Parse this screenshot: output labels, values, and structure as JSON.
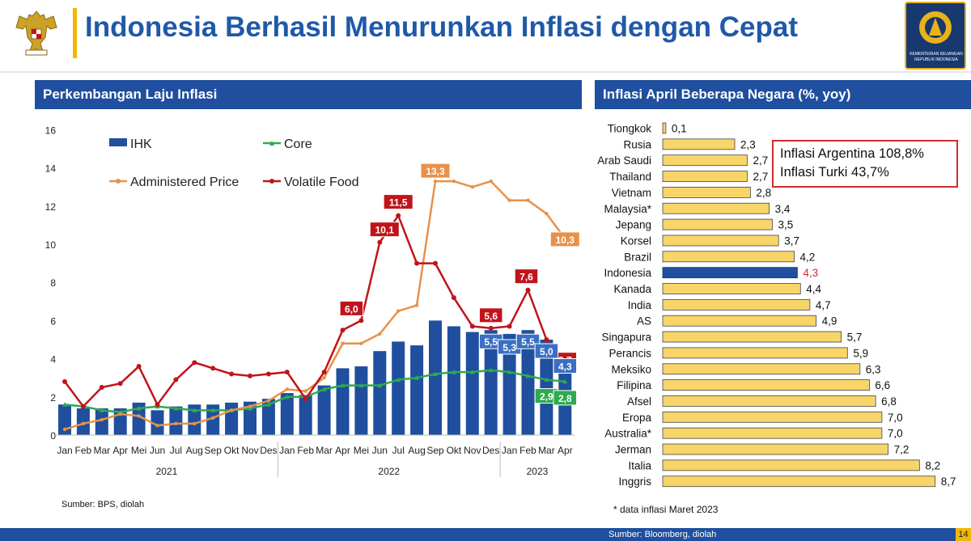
{
  "header": {
    "title": "Indonesia Berhasil Menurunkan Inflasi dengan Cepat",
    "logo_text": "KEMENTERIAN KEUANGAN REPUBLIK INDONESIA",
    "brand_blue": "#1f4f9e",
    "accent_yellow": "#f2b705"
  },
  "left_panel": {
    "title": "Perkembangan Laju Inflasi",
    "source": "Sumber: BPS, diolah"
  },
  "right_panel": {
    "title": "Inflasi April Beberapa Negara (%, yoy)",
    "note": "* data inflasi Maret 2023",
    "callout_lines": [
      "Inflasi Argentina 108,8%",
      "Inflasi Turki 43,7%"
    ]
  },
  "footer": {
    "source": "Sumber: Bloomberg, diolah",
    "page": "14"
  },
  "chart_data": [
    {
      "type": "bar",
      "ylim": [
        0,
        16
      ],
      "yticks": [
        "0",
        "2",
        "4",
        "6",
        "8",
        "10",
        "12",
        "14",
        "16"
      ],
      "categories": [
        "Jan",
        "Feb",
        "Mar",
        "Apr",
        "Mei",
        "Jun",
        "Jul",
        "Aug",
        "Sep",
        "Okt",
        "Nov",
        "Des",
        "Jan",
        "Feb",
        "Mar",
        "Apr",
        "Mei",
        "Jun",
        "Jul",
        "Aug",
        "Sep",
        "Okt",
        "Nov",
        "Des",
        "Jan",
        "Feb",
        "Mar",
        "Apr"
      ],
      "years": [
        {
          "label": "2021",
          "from": 0,
          "to": 11
        },
        {
          "label": "2022",
          "from": 12,
          "to": 23
        },
        {
          "label": "2023",
          "from": 24,
          "to": 27
        }
      ],
      "legend": [
        "IHK",
        "Core",
        "Administered Price",
        "Volatile Food"
      ],
      "series": [
        {
          "name": "IHK",
          "kind": "bar",
          "color": "#1f4f9e",
          "values": [
            1.6,
            1.4,
            1.4,
            1.4,
            1.7,
            1.3,
            1.5,
            1.6,
            1.6,
            1.7,
            1.75,
            1.9,
            2.2,
            2.1,
            2.6,
            3.5,
            3.6,
            4.4,
            4.9,
            4.7,
            6.0,
            5.7,
            5.4,
            5.5,
            5.3,
            5.5,
            5.0,
            4.3
          ]
        },
        {
          "name": "Core",
          "kind": "line",
          "color": "#2eaa4f",
          "values": [
            1.6,
            1.5,
            1.3,
            1.2,
            1.4,
            1.5,
            1.4,
            1.3,
            1.3,
            1.3,
            1.4,
            1.6,
            2.0,
            2.0,
            2.4,
            2.6,
            2.6,
            2.6,
            2.9,
            3.0,
            3.2,
            3.3,
            3.3,
            3.4,
            3.3,
            3.1,
            2.9,
            2.8
          ]
        },
        {
          "name": "Administered Price",
          "kind": "line",
          "color": "#e8914a",
          "values": [
            0.3,
            0.6,
            0.8,
            1.1,
            1.0,
            0.5,
            0.6,
            0.6,
            0.9,
            1.3,
            1.5,
            1.8,
            2.4,
            2.3,
            3.0,
            4.8,
            4.8,
            5.3,
            6.5,
            6.8,
            13.3,
            13.3,
            13.0,
            13.3,
            12.3,
            12.3,
            11.6,
            10.3
          ]
        },
        {
          "name": "Volatile Food",
          "kind": "line",
          "color": "#c0141b",
          "values": [
            2.8,
            1.5,
            2.5,
            2.7,
            3.6,
            1.6,
            2.9,
            3.8,
            3.5,
            3.2,
            3.1,
            3.2,
            3.3,
            1.9,
            3.3,
            5.5,
            6.0,
            10.1,
            11.5,
            9.0,
            9.0,
            7.2,
            5.7,
            5.6,
            5.7,
            7.6,
            5.0,
            3.7
          ]
        }
      ],
      "data_labels": [
        {
          "series": "Volatile Food",
          "index": 16,
          "text": "6,0"
        },
        {
          "series": "Volatile Food",
          "index": 17,
          "text": "10,1"
        },
        {
          "series": "Volatile Food",
          "index": 18,
          "text": "11,5"
        },
        {
          "series": "Volatile Food",
          "index": 23,
          "text": "5,6"
        },
        {
          "series": "Volatile Food",
          "index": 25,
          "text": "7,6"
        },
        {
          "series": "Volatile Food",
          "index": 27,
          "text": "3,7"
        },
        {
          "series": "Administered Price",
          "index": 20,
          "text": "13,3"
        },
        {
          "series": "Administered Price",
          "index": 27,
          "text": "10,3"
        },
        {
          "series": "IHK",
          "index": 23,
          "text": "5,5"
        },
        {
          "series": "IHK",
          "index": 24,
          "text": "5,3"
        },
        {
          "series": "IHK",
          "index": 25,
          "text": "5,5"
        },
        {
          "series": "IHK",
          "index": 26,
          "text": "5,0"
        },
        {
          "series": "IHK",
          "index": 27,
          "text": "4,3"
        },
        {
          "series": "Core",
          "index": 26,
          "text": "2,9"
        },
        {
          "series": "Core",
          "index": 27,
          "text": "2,8"
        }
      ]
    },
    {
      "type": "bar",
      "orientation": "horizontal",
      "bar_color": "#f7d569",
      "highlight_color": "#1f4f9e",
      "highlight_label_color": "#d42a2a",
      "categories": [
        "Tiongkok",
        "Rusia",
        "Arab Saudi",
        "Thailand",
        "Vietnam",
        "Malaysia*",
        "Jepang",
        "Korsel",
        "Brazil",
        "Indonesia",
        "Kanada",
        "India",
        "AS",
        "Singapura",
        "Perancis",
        "Meksiko",
        "Filipina",
        "Afsel",
        "Eropa",
        "Australia*",
        "Jerman",
        "Italia",
        "Inggris"
      ],
      "values": [
        0.1,
        2.3,
        2.7,
        2.7,
        2.8,
        3.4,
        3.5,
        3.7,
        4.2,
        4.3,
        4.4,
        4.7,
        4.9,
        5.7,
        5.9,
        6.3,
        6.6,
        6.8,
        7.0,
        7.0,
        7.2,
        8.2,
        8.7
      ],
      "labels": [
        "0,1",
        "2,3",
        "2,7",
        "2,7",
        "2,8",
        "3,4",
        "3,5",
        "3,7",
        "4,2",
        "4,3",
        "4,4",
        "4,7",
        "4,9",
        "5,7",
        "5,9",
        "6,3",
        "6,6",
        "6,8",
        "7,0",
        "7,0",
        "7,2",
        "8,2",
        "8,7"
      ],
      "highlight": "Indonesia"
    }
  ]
}
